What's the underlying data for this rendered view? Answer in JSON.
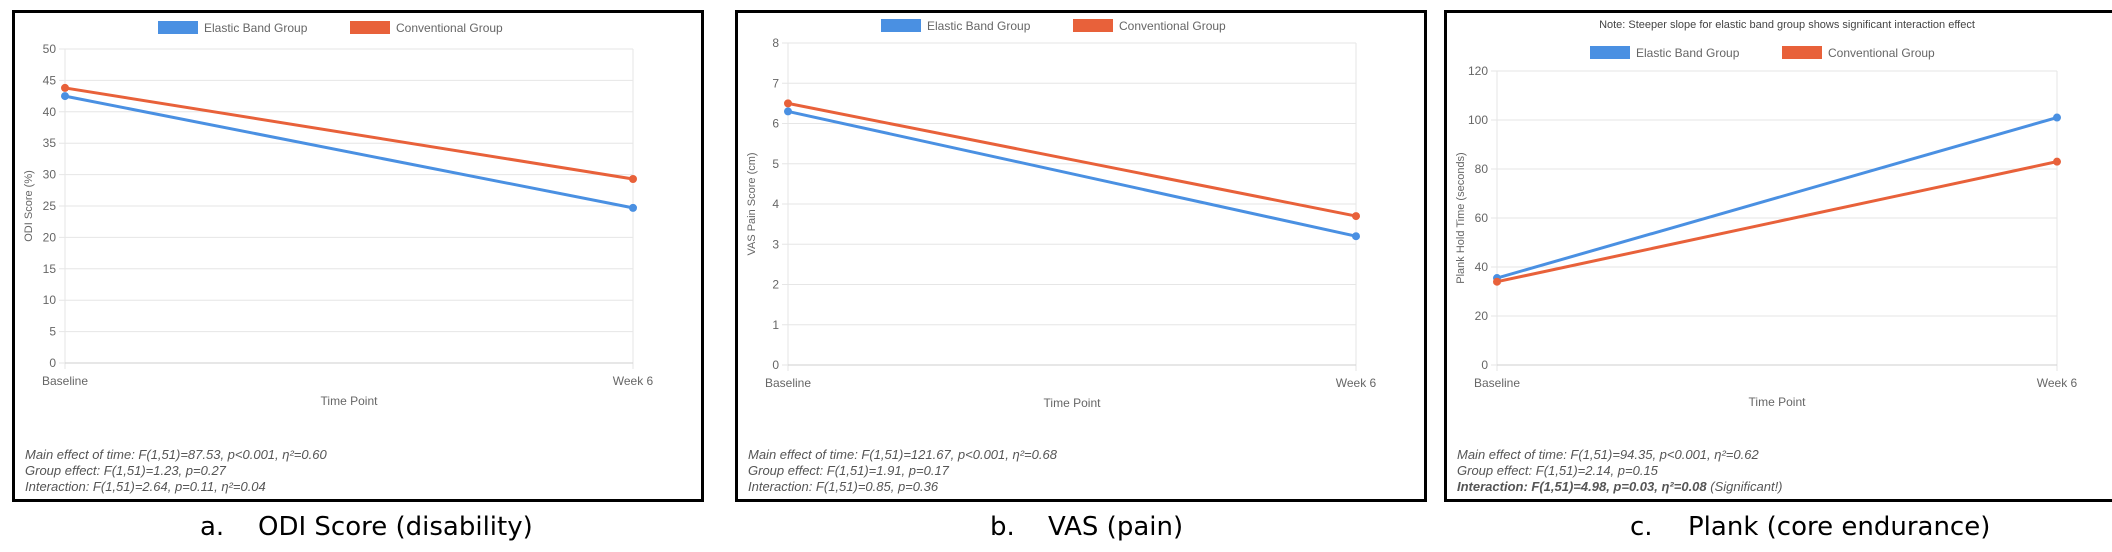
{
  "legend": {
    "series1": "Elastic Band Group",
    "series2": "Conventional Group"
  },
  "colors": {
    "series1": "#4a90e2",
    "series2": "#e8613a",
    "grid": "#e6e6e6",
    "axis": "#666666"
  },
  "chart_data": [
    {
      "type": "line",
      "title": "",
      "note": "",
      "categories": [
        "Baseline",
        "Week 6"
      ],
      "xlabel": "Time Point",
      "ylabel": "ODI Score (%)",
      "ylim": [
        0,
        50
      ],
      "yticks": [
        0,
        5,
        10,
        15,
        20,
        25,
        30,
        35,
        40,
        45,
        50
      ],
      "grid": true,
      "legend_position": "top",
      "series": [
        {
          "name": "Elastic Band Group",
          "values": [
            42.5,
            24.7
          ]
        },
        {
          "name": "Conventional Group",
          "values": [
            43.8,
            29.3
          ]
        }
      ],
      "stats": [
        "Main effect of time: F(1,51)=87.53, p<0.001, η²=0.60",
        "Group effect: F(1,51)=1.23, p=0.27",
        "Interaction: F(1,51)=2.64, p=0.11, η²=0.04"
      ],
      "caption_letter": "a.",
      "caption_text": "ODI Score (disability)"
    },
    {
      "type": "line",
      "title": "",
      "note": "",
      "categories": [
        "Baseline",
        "Week 6"
      ],
      "xlabel": "Time Point",
      "ylabel": "VAS Pain Score (cm)",
      "ylim": [
        0,
        8
      ],
      "yticks": [
        0,
        1,
        2,
        3,
        4,
        5,
        6,
        7,
        8
      ],
      "grid": true,
      "legend_position": "top",
      "series": [
        {
          "name": "Elastic Band Group",
          "values": [
            6.3,
            3.2
          ]
        },
        {
          "name": "Conventional Group",
          "values": [
            6.5,
            3.7
          ]
        }
      ],
      "stats": [
        "Main effect of time: F(1,51)=121.67, p<0.001, η²=0.68",
        "Group effect: F(1,51)=1.91, p=0.17",
        "Interaction: F(1,51)=0.85, p=0.36"
      ],
      "caption_letter": "b.",
      "caption_text": "VAS (pain)"
    },
    {
      "type": "line",
      "title": "",
      "note": "Note: Steeper slope for elastic band group shows significant interaction effect",
      "categories": [
        "Baseline",
        "Week 6"
      ],
      "xlabel": "Time Point",
      "ylabel": "Plank Hold Time (seconds)",
      "ylim": [
        0,
        120
      ],
      "yticks": [
        0,
        20,
        40,
        60,
        80,
        100,
        120
      ],
      "grid": true,
      "legend_position": "top",
      "series": [
        {
          "name": "Elastic Band Group",
          "values": [
            35.5,
            101
          ]
        },
        {
          "name": "Conventional Group",
          "values": [
            34,
            83
          ]
        }
      ],
      "stats": [
        "Main effect of time: F(1,51)=94.35, p<0.001, η²=0.62",
        "Group effect: F(1,51)=2.14, p=0.15",
        "Interaction: F(1,51)=4.98, p=0.03, η²=0.08"
      ],
      "stats_note": "(Significant!)",
      "caption_letter": "c.",
      "caption_text": "Plank (core endurance)"
    }
  ]
}
